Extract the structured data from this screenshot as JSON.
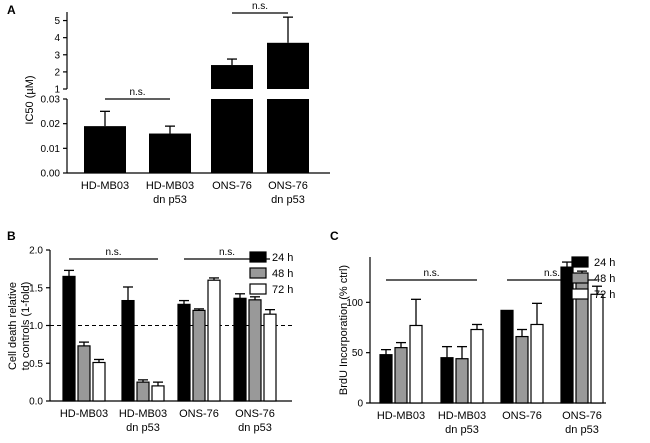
{
  "chart_data": [
    {
      "panel": "A",
      "type": "bar",
      "ylabel": "IC50 (µM)",
      "categories": [
        "HD-MB03",
        "HD-MB03\ndn p53",
        "ONS-76",
        "ONS-76\ndn p53"
      ],
      "values": [
        0.019,
        0.016,
        2.4,
        3.7
      ],
      "errors": [
        0.006,
        0.003,
        0.35,
        1.5
      ],
      "axis_segments": [
        {
          "ylim": [
            0,
            0.03
          ],
          "ticks": [
            "0.00",
            "0.01",
            "0.02",
            "0.03"
          ]
        },
        {
          "ylim": [
            1,
            5.5
          ],
          "ticks": [
            "1",
            "2",
            "3",
            "4",
            "5"
          ]
        }
      ],
      "significance": [
        {
          "between": [
            0,
            1
          ],
          "label": "n.s."
        },
        {
          "between": [
            2,
            3
          ],
          "label": "n.s."
        }
      ]
    },
    {
      "panel": "B",
      "type": "bar",
      "ylabel": "Cell death relative\nto controls (1-fold)",
      "categories": [
        "HD-MB03",
        "HD-MB03\ndn p53",
        "ONS-76",
        "ONS-76\ndn p53"
      ],
      "ylim": [
        0,
        2.0
      ],
      "yticks": [
        "0.0",
        "0.5",
        "1.0",
        "1.5",
        "2.0"
      ],
      "reference_line": 1.0,
      "series": [
        {
          "name": "24 h",
          "color": "#000000",
          "values": [
            1.65,
            1.33,
            1.28,
            1.36
          ],
          "errors": [
            0.08,
            0.18,
            0.05,
            0.06
          ]
        },
        {
          "name": "48 h",
          "color": "#999999",
          "values": [
            0.73,
            0.25,
            1.2,
            1.34
          ],
          "errors": [
            0.05,
            0.03,
            0.02,
            0.04
          ]
        },
        {
          "name": "72 h",
          "color": "#ffffff",
          "values": [
            0.51,
            0.2,
            1.6,
            1.15
          ],
          "errors": [
            0.04,
            0.05,
            0.03,
            0.06
          ]
        }
      ],
      "significance": [
        {
          "between": [
            0,
            1
          ],
          "label": "n.s."
        },
        {
          "between": [
            2,
            3
          ],
          "label": "n.s."
        }
      ]
    },
    {
      "panel": "C",
      "type": "bar",
      "ylabel": "BrdU Incorporation (% ctrl)",
      "categories": [
        "HD-MB03",
        "HD-MB03\ndn p53",
        "ONS-76",
        "ONS-76\ndn p53"
      ],
      "ylim": [
        0,
        150
      ],
      "yticks": [
        "0",
        "50",
        "100"
      ],
      "series": [
        {
          "name": "24 h",
          "color": "#000000",
          "values": [
            48,
            45,
            92,
            135
          ],
          "errors": [
            5,
            11,
            0,
            5
          ]
        },
        {
          "name": "48 h",
          "color": "#999999",
          "values": [
            55,
            44,
            66,
            121
          ],
          "errors": [
            5,
            12,
            7,
            10
          ]
        },
        {
          "name": "72 h",
          "color": "#ffffff",
          "values": [
            77,
            73,
            78,
            108
          ],
          "errors": [
            26,
            5,
            21,
            8
          ]
        }
      ],
      "significance": [
        {
          "between": [
            0,
            1
          ],
          "label": "n.s."
        },
        {
          "between": [
            2,
            3
          ],
          "label": "n.s."
        }
      ]
    }
  ]
}
